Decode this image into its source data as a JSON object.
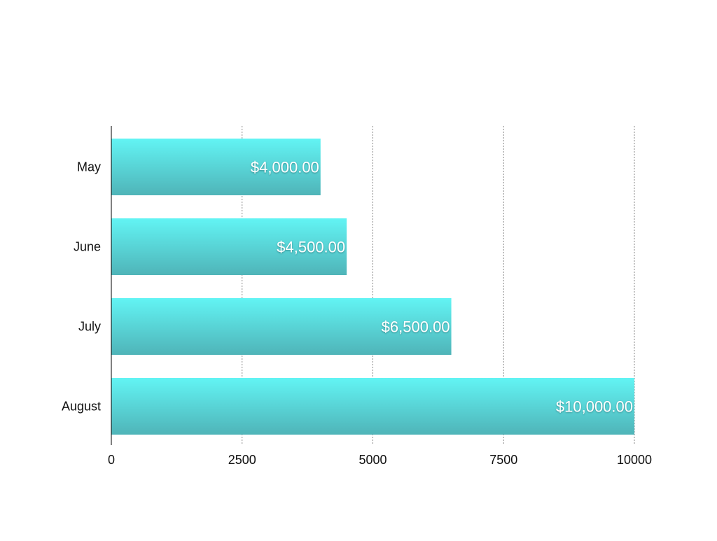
{
  "chart_data": {
    "type": "bar",
    "orientation": "horizontal",
    "title": "",
    "xlabel": "",
    "ylabel": "",
    "categories": [
      "May",
      "June",
      "July",
      "August"
    ],
    "values": [
      4000,
      4500,
      6500,
      10000
    ],
    "data_labels": [
      "$4,000.00",
      "$4,500.00",
      "$6,500.00",
      "$10,000.00"
    ],
    "xlim": [
      0,
      10000
    ],
    "x_ticks": [
      0,
      2500,
      5000,
      7500,
      10000
    ],
    "x_tick_labels": [
      "0",
      "2500",
      "5000",
      "7500",
      "10000"
    ],
    "grid": "vertical-dotted",
    "bar_color_top": "#62f4f4",
    "bar_color_bottom": "#4fb4b8",
    "label_color": "#ffffff"
  }
}
